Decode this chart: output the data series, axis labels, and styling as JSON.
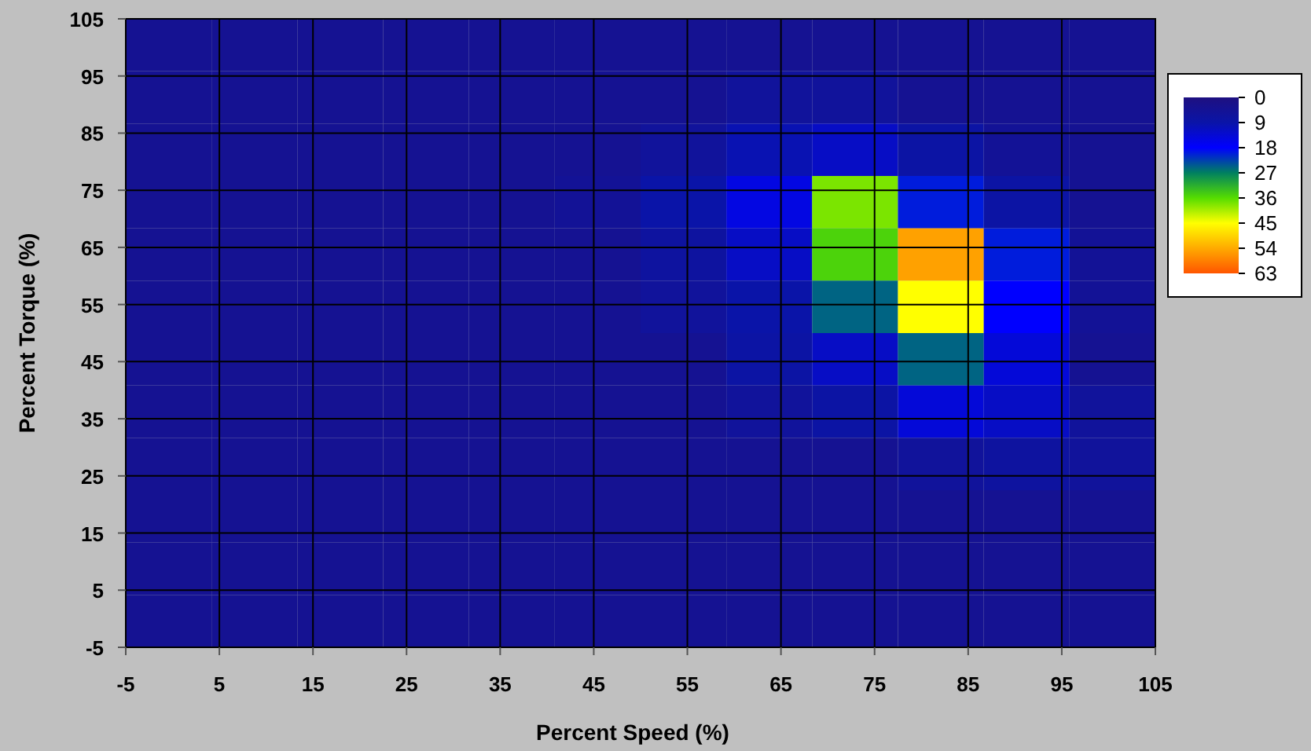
{
  "chart_data": {
    "type": "heatmap",
    "xlabel": "Percent Speed (%)",
    "ylabel": "Percent Torque (%)",
    "xlim": [
      -5,
      105
    ],
    "xticks": [
      -5,
      5,
      15,
      25,
      35,
      45,
      55,
      65,
      75,
      85,
      95,
      105
    ],
    "ylim": [
      -5,
      105
    ],
    "yticks": [
      -5,
      5,
      15,
      25,
      35,
      45,
      55,
      65,
      75,
      85,
      95,
      105
    ],
    "grid": true,
    "clim": [
      0,
      63
    ],
    "cticks": [
      0,
      9,
      18,
      27,
      36,
      45,
      54,
      63
    ],
    "colors": [
      "#1e1080",
      "#0a14a8",
      "#0000ff",
      "#008060",
      "#55dd00",
      "#ffff00",
      "#ffaa00",
      "#ff5500"
    ],
    "cells": [
      [
        4,
        4,
        4,
        4,
        4,
        4,
        4,
        4,
        4,
        4,
        4,
        4
      ],
      [
        4,
        4,
        4,
        4,
        4,
        4,
        4,
        6,
        6,
        4,
        4,
        4
      ],
      [
        4,
        4,
        4,
        4,
        4,
        4,
        6,
        10,
        12,
        8,
        5,
        4
      ],
      [
        4,
        4,
        4,
        4,
        4,
        5,
        9,
        15,
        38,
        20,
        8,
        4
      ],
      [
        4,
        4,
        4,
        4,
        4,
        4,
        7,
        12,
        35,
        55,
        20,
        5
      ],
      [
        4,
        4,
        4,
        4,
        4,
        4,
        6,
        9,
        25,
        45,
        18,
        5
      ],
      [
        4,
        4,
        4,
        4,
        4,
        4,
        4,
        8,
        12,
        25,
        14,
        4
      ],
      [
        4,
        4,
        4,
        4,
        4,
        4,
        4,
        6,
        8,
        14,
        12,
        6
      ],
      [
        4,
        4,
        4,
        4,
        4,
        4,
        4,
        4,
        4,
        6,
        7,
        6
      ],
      [
        4,
        4,
        4,
        4,
        4,
        4,
        4,
        4,
        4,
        4,
        4,
        4
      ],
      [
        4,
        4,
        4,
        4,
        4,
        4,
        4,
        4,
        4,
        4,
        4,
        4
      ],
      [
        4,
        4,
        4,
        4,
        4,
        4,
        4,
        4,
        4,
        4,
        4,
        4
      ]
    ]
  }
}
